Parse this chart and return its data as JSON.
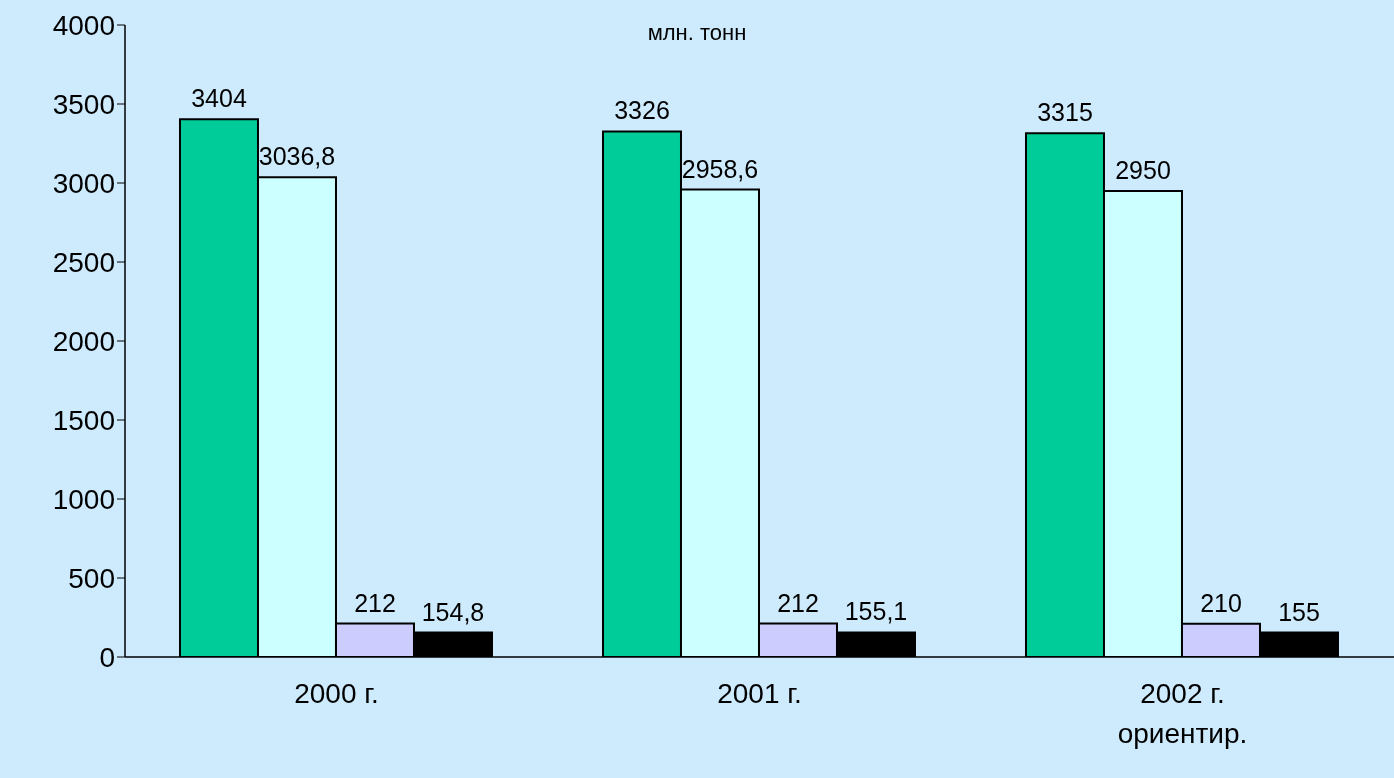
{
  "chart_data": {
    "type": "bar",
    "subtitle": "млн. тонн",
    "categories": [
      "2000 г.",
      "2001 г.",
      "2002 г.\nориентир."
    ],
    "series": [
      {
        "color": "#00cc99",
        "values": [
          3404,
          3326,
          3315
        ],
        "value_labels": [
          "3404",
          "3326",
          "3315"
        ]
      },
      {
        "color": "#ccffff",
        "values": [
          3036.8,
          2958.6,
          2950
        ],
        "value_labels": [
          "3036,8",
          "2958,6",
          "2950"
        ]
      },
      {
        "color": "#ccccff",
        "values": [
          212,
          212,
          210
        ],
        "value_labels": [
          "212",
          "212",
          "210"
        ]
      },
      {
        "color": "#000000",
        "values": [
          154.8,
          155.1,
          155
        ],
        "value_labels": [
          "154,8",
          "155,1",
          "155"
        ]
      }
    ],
    "ylim": [
      0,
      4000
    ],
    "yticks": [
      0,
      500,
      1000,
      1500,
      2000,
      2500,
      3000,
      3500,
      4000
    ],
    "grid": false,
    "legend": false
  }
}
